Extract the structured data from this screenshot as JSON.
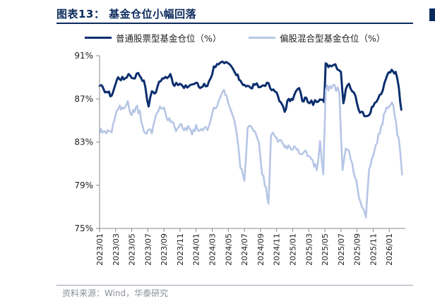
{
  "header": {
    "title": "图表13：  基金仓位小幅回落"
  },
  "footer": {
    "source": "资料来源：Wind，华泰研究"
  },
  "chart_data": {
    "type": "line",
    "xlabel": "",
    "ylabel": "",
    "ylim": [
      75,
      91
    ],
    "y_ticks": [
      "91%",
      "87%",
      "83%",
      "79%",
      "75%"
    ],
    "y_tick_values": [
      91,
      87,
      83,
      79,
      75
    ],
    "x_ticks": [
      "2023/01",
      "2023/03",
      "2023/05",
      "2023/07",
      "2023/09",
      "2023/11",
      "2024/01",
      "2024/03",
      "2024/05",
      "2024/07",
      "2024/09",
      "2024/11",
      "2025/01",
      "2025/03",
      "2025/05",
      "2025/07",
      "2025/09",
      "2025/11",
      "2026/01"
    ],
    "x_range_months": [
      0,
      38
    ],
    "grid": false,
    "legend_position": "top",
    "series": [
      {
        "name": "普通股票型基金仓位（%）",
        "color": "#0b2e6e",
        "points": [
          [
            0,
            88.2
          ],
          [
            0.5,
            87.9
          ],
          [
            1,
            87.6
          ],
          [
            1.5,
            87.3
          ],
          [
            2,
            88.4
          ],
          [
            2.3,
            89.0
          ],
          [
            3,
            88.8
          ],
          [
            3.6,
            89.3
          ],
          [
            4.2,
            88.9
          ],
          [
            4.8,
            89.4
          ],
          [
            5.5,
            88.7
          ],
          [
            6.1,
            86.3
          ],
          [
            6.5,
            87.7
          ],
          [
            7,
            87.6
          ],
          [
            7.4,
            88.6
          ],
          [
            8,
            88.9
          ],
          [
            8.8,
            89.3
          ],
          [
            9.3,
            88.2
          ],
          [
            10,
            88.4
          ],
          [
            10.5,
            88.0
          ],
          [
            11.3,
            88.3
          ],
          [
            12,
            88.5
          ],
          [
            12.5,
            88.0
          ],
          [
            13,
            88.4
          ],
          [
            13.4,
            88.2
          ],
          [
            13.8,
            88.9
          ],
          [
            14.2,
            90.0
          ],
          [
            14.8,
            90.2
          ],
          [
            15.5,
            90.3
          ],
          [
            16.3,
            90.1
          ],
          [
            17,
            89.2
          ],
          [
            17.5,
            88.7
          ],
          [
            18,
            88.3
          ],
          [
            18.8,
            88.0
          ],
          [
            19.3,
            88.3
          ],
          [
            20,
            88.1
          ],
          [
            20.8,
            88.5
          ],
          [
            21.4,
            87.8
          ],
          [
            22,
            87.6
          ],
          [
            22.5,
            86.7
          ],
          [
            23,
            85.8
          ],
          [
            23.5,
            87.0
          ],
          [
            24,
            86.9
          ],
          [
            24.4,
            87.7
          ],
          [
            24.8,
            88.0
          ],
          [
            25.2,
            86.8
          ],
          [
            25.7,
            87.1
          ],
          [
            26.1,
            86.6
          ],
          [
            27,
            86.7
          ],
          [
            27.6,
            86.9
          ],
          [
            27.9,
            86.7
          ],
          [
            28.1,
            90.3
          ],
          [
            28.6,
            90.1
          ],
          [
            29.3,
            90.2
          ],
          [
            30,
            89.5
          ],
          [
            30.3,
            86.6
          ],
          [
            30.6,
            87.9
          ],
          [
            31,
            88.4
          ],
          [
            31.6,
            87.6
          ],
          [
            32.2,
            86.0
          ],
          [
            32.7,
            85.8
          ],
          [
            33.1,
            85.4
          ],
          [
            33.5,
            85.5
          ],
          [
            34,
            86.3
          ],
          [
            34.6,
            87.0
          ],
          [
            35.2,
            87.8
          ],
          [
            35.8,
            89.3
          ],
          [
            36.3,
            89.7
          ],
          [
            36.8,
            89.5
          ],
          [
            37.2,
            88.0
          ],
          [
            37.5,
            86.0
          ]
        ]
      },
      {
        "name": "偏股混合型基金仓位（%）",
        "color": "#b7c6e6",
        "points": [
          [
            0,
            83.9
          ],
          [
            0.5,
            84.0
          ],
          [
            1,
            84.1
          ],
          [
            1.5,
            83.9
          ],
          [
            2,
            85.5
          ],
          [
            2.5,
            86.4
          ],
          [
            3,
            86.1
          ],
          [
            3.5,
            86.8
          ],
          [
            4,
            85.5
          ],
          [
            4.5,
            86.2
          ],
          [
            5,
            85.9
          ],
          [
            5.5,
            84.0
          ],
          [
            6,
            84.1
          ],
          [
            6.5,
            83.8
          ],
          [
            7,
            85.5
          ],
          [
            7.5,
            86.3
          ],
          [
            8,
            86.2
          ],
          [
            8.5,
            85.0
          ],
          [
            9,
            84.9
          ],
          [
            9.5,
            84.0
          ],
          [
            10,
            84.6
          ],
          [
            10.5,
            84.1
          ],
          [
            11,
            84.5
          ],
          [
            11.5,
            83.7
          ],
          [
            12,
            84.6
          ],
          [
            12.5,
            84.1
          ],
          [
            13,
            84.3
          ],
          [
            13.4,
            84.1
          ],
          [
            13.8,
            85.0
          ],
          [
            14.2,
            86.2
          ],
          [
            14.8,
            86.8
          ],
          [
            15.3,
            87.7
          ],
          [
            15.8,
            87.3
          ],
          [
            16.3,
            86.0
          ],
          [
            17,
            84.0
          ],
          [
            17.5,
            80.6
          ],
          [
            18,
            79.4
          ],
          [
            18.4,
            84.3
          ],
          [
            18.8,
            84.5
          ],
          [
            19.3,
            84.0
          ],
          [
            19.8,
            83.0
          ],
          [
            20.2,
            80.0
          ],
          [
            20.7,
            78.8
          ],
          [
            21,
            77.3
          ],
          [
            21.3,
            83.6
          ],
          [
            22,
            83.4
          ],
          [
            22.5,
            83.2
          ],
          [
            23,
            82.5
          ],
          [
            23.5,
            82.7
          ],
          [
            24,
            82.3
          ],
          [
            24.5,
            82.3
          ],
          [
            25,
            81.9
          ],
          [
            25.5,
            82.2
          ],
          [
            26,
            81.7
          ],
          [
            26.5,
            81.3
          ],
          [
            27,
            80.4
          ],
          [
            27.4,
            83.1
          ],
          [
            27.8,
            80.0
          ],
          [
            28.1,
            87.8
          ],
          [
            28.6,
            88.2
          ],
          [
            29.2,
            88.3
          ],
          [
            29.8,
            87.5
          ],
          [
            30.2,
            80.4
          ],
          [
            30.6,
            82.4
          ],
          [
            31,
            82.2
          ],
          [
            31.4,
            81.0
          ],
          [
            31.9,
            79.5
          ],
          [
            32.4,
            77.5
          ],
          [
            32.8,
            76.8
          ],
          [
            33.1,
            76.0
          ],
          [
            33.5,
            80.5
          ],
          [
            34,
            81.7
          ],
          [
            34.5,
            82.9
          ],
          [
            35,
            84.5
          ],
          [
            35.5,
            85.8
          ],
          [
            36,
            86.3
          ],
          [
            36.5,
            86.4
          ],
          [
            37,
            83.7
          ],
          [
            37.3,
            82.6
          ],
          [
            37.6,
            80.0
          ]
        ]
      }
    ]
  }
}
